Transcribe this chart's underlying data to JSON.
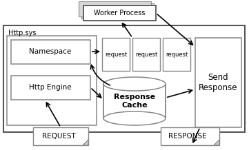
{
  "bg_color": "#ffffff",
  "worker_process_label": "Worker Process",
  "namespace_label": "Namespace",
  "http_engine_label": "Http Engine",
  "response_cache_label": "Response\nCache",
  "send_response_label": "Send\nResponse",
  "request_labels": [
    "request",
    "request",
    "request"
  ],
  "request_label": "REQUEST",
  "response_label": "RESPONSE",
  "httpsys_label": "Http.sys"
}
